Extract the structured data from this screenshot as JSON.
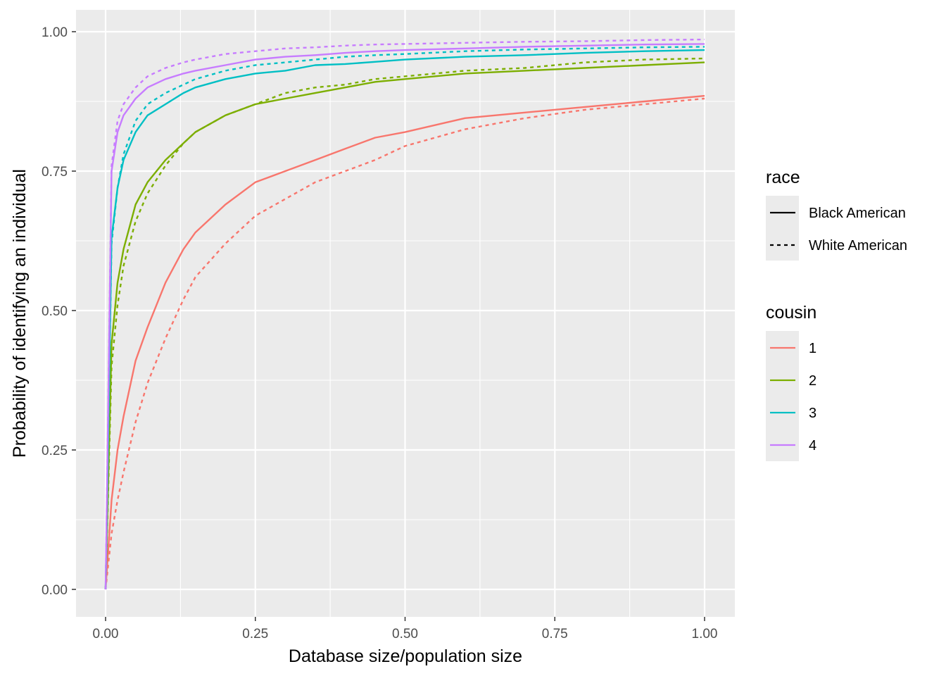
{
  "chart_data": {
    "type": "line",
    "title": "",
    "xlabel": "Database size/population size",
    "ylabel": "Probability of identifying an individual",
    "xlim": [
      -0.05,
      1.05
    ],
    "ylim": [
      -0.05,
      1.0
    ],
    "x_ticks": [
      0,
      0.25,
      0.5,
      0.75,
      1.0
    ],
    "x_tick_labels": [
      "0.00",
      "0.25",
      "0.50",
      "0.75",
      "1.00"
    ],
    "y_ticks": [
      0,
      0.25,
      0.5,
      0.75,
      1.0
    ],
    "y_tick_labels": [
      "0.00",
      "0.25",
      "0.50",
      "0.75",
      "1.00"
    ],
    "grid": true,
    "legend_position": "right",
    "legends": {
      "race": {
        "title": "race",
        "entries": [
          {
            "label": "Black American",
            "linetype": "solid"
          },
          {
            "label": "White American",
            "linetype": "dashed"
          }
        ]
      },
      "cousin": {
        "title": "cousin",
        "entries": [
          {
            "label": "1",
            "color": "#F8766D"
          },
          {
            "label": "2",
            "color": "#7CAE00"
          },
          {
            "label": "3",
            "color": "#00BFC4"
          },
          {
            "label": "4",
            "color": "#C77CFF"
          }
        ]
      }
    },
    "series": [
      {
        "cousin": "1",
        "race": "Black American",
        "color": "#F8766D",
        "linetype": "solid",
        "x": [
          0,
          0.01,
          0.02,
          0.03,
          0.05,
          0.07,
          0.1,
          0.13,
          0.15,
          0.2,
          0.25,
          0.3,
          0.35,
          0.4,
          0.45,
          0.5,
          0.6,
          0.7,
          0.8,
          0.9,
          1.0
        ],
        "y": [
          0,
          0.16,
          0.25,
          0.31,
          0.41,
          0.47,
          0.55,
          0.61,
          0.64,
          0.69,
          0.73,
          0.75,
          0.77,
          0.79,
          0.81,
          0.82,
          0.845,
          0.855,
          0.865,
          0.875,
          0.885
        ]
      },
      {
        "cousin": "1",
        "race": "White American",
        "color": "#F8766D",
        "linetype": "dashed",
        "x": [
          0,
          0.01,
          0.02,
          0.03,
          0.05,
          0.07,
          0.1,
          0.13,
          0.15,
          0.2,
          0.25,
          0.3,
          0.35,
          0.4,
          0.45,
          0.5,
          0.6,
          0.7,
          0.8,
          0.9,
          1.0
        ],
        "y": [
          0,
          0.1,
          0.16,
          0.21,
          0.3,
          0.37,
          0.45,
          0.52,
          0.56,
          0.62,
          0.67,
          0.7,
          0.73,
          0.75,
          0.77,
          0.795,
          0.825,
          0.845,
          0.86,
          0.87,
          0.88
        ]
      },
      {
        "cousin": "2",
        "race": "Black American",
        "color": "#7CAE00",
        "linetype": "solid",
        "x": [
          0,
          0.01,
          0.02,
          0.03,
          0.05,
          0.07,
          0.1,
          0.13,
          0.15,
          0.2,
          0.25,
          0.3,
          0.35,
          0.4,
          0.45,
          0.5,
          0.6,
          0.7,
          0.8,
          0.9,
          1.0
        ],
        "y": [
          0,
          0.44,
          0.55,
          0.61,
          0.69,
          0.73,
          0.77,
          0.8,
          0.82,
          0.85,
          0.87,
          0.88,
          0.89,
          0.9,
          0.91,
          0.915,
          0.925,
          0.93,
          0.935,
          0.94,
          0.945
        ]
      },
      {
        "cousin": "2",
        "race": "White American",
        "color": "#7CAE00",
        "linetype": "dashed",
        "x": [
          0,
          0.01,
          0.02,
          0.03,
          0.05,
          0.07,
          0.1,
          0.13,
          0.15,
          0.2,
          0.25,
          0.3,
          0.35,
          0.4,
          0.45,
          0.5,
          0.6,
          0.7,
          0.8,
          0.9,
          1.0
        ],
        "y": [
          0,
          0.4,
          0.51,
          0.58,
          0.66,
          0.71,
          0.76,
          0.8,
          0.82,
          0.85,
          0.87,
          0.89,
          0.9,
          0.905,
          0.915,
          0.92,
          0.93,
          0.935,
          0.945,
          0.95,
          0.952
        ]
      },
      {
        "cousin": "3",
        "race": "Black American",
        "color": "#00BFC4",
        "linetype": "solid",
        "x": [
          0,
          0.01,
          0.02,
          0.03,
          0.05,
          0.07,
          0.1,
          0.13,
          0.15,
          0.2,
          0.25,
          0.3,
          0.35,
          0.4,
          0.45,
          0.5,
          0.6,
          0.7,
          0.8,
          0.9,
          1.0
        ],
        "y": [
          0,
          0.63,
          0.72,
          0.77,
          0.82,
          0.85,
          0.87,
          0.89,
          0.9,
          0.915,
          0.925,
          0.93,
          0.94,
          0.942,
          0.946,
          0.95,
          0.955,
          0.958,
          0.962,
          0.965,
          0.967
        ]
      },
      {
        "cousin": "3",
        "race": "White American",
        "color": "#00BFC4",
        "linetype": "dashed",
        "x": [
          0,
          0.01,
          0.02,
          0.03,
          0.05,
          0.07,
          0.1,
          0.13,
          0.15,
          0.2,
          0.25,
          0.3,
          0.35,
          0.4,
          0.45,
          0.5,
          0.6,
          0.7,
          0.8,
          0.9,
          1.0
        ],
        "y": [
          0,
          0.62,
          0.72,
          0.78,
          0.84,
          0.87,
          0.89,
          0.905,
          0.915,
          0.93,
          0.94,
          0.945,
          0.95,
          0.955,
          0.958,
          0.96,
          0.965,
          0.968,
          0.97,
          0.972,
          0.973
        ]
      },
      {
        "cousin": "4",
        "race": "Black American",
        "color": "#C77CFF",
        "linetype": "solid",
        "x": [
          0,
          0.01,
          0.02,
          0.03,
          0.05,
          0.07,
          0.1,
          0.13,
          0.15,
          0.2,
          0.25,
          0.3,
          0.35,
          0.4,
          0.45,
          0.5,
          0.6,
          0.7,
          0.8,
          0.9,
          1.0
        ],
        "y": [
          0,
          0.75,
          0.82,
          0.85,
          0.88,
          0.9,
          0.915,
          0.925,
          0.93,
          0.94,
          0.95,
          0.955,
          0.958,
          0.962,
          0.965,
          0.967,
          0.97,
          0.973,
          0.975,
          0.977,
          0.978
        ]
      },
      {
        "cousin": "4",
        "race": "White American",
        "color": "#C77CFF",
        "linetype": "dashed",
        "x": [
          0,
          0.01,
          0.02,
          0.03,
          0.05,
          0.07,
          0.1,
          0.13,
          0.15,
          0.2,
          0.25,
          0.3,
          0.35,
          0.4,
          0.45,
          0.5,
          0.6,
          0.7,
          0.8,
          0.9,
          1.0
        ],
        "y": [
          0,
          0.76,
          0.84,
          0.87,
          0.9,
          0.92,
          0.935,
          0.945,
          0.95,
          0.96,
          0.965,
          0.97,
          0.972,
          0.975,
          0.977,
          0.978,
          0.98,
          0.982,
          0.983,
          0.985,
          0.986
        ]
      }
    ]
  }
}
